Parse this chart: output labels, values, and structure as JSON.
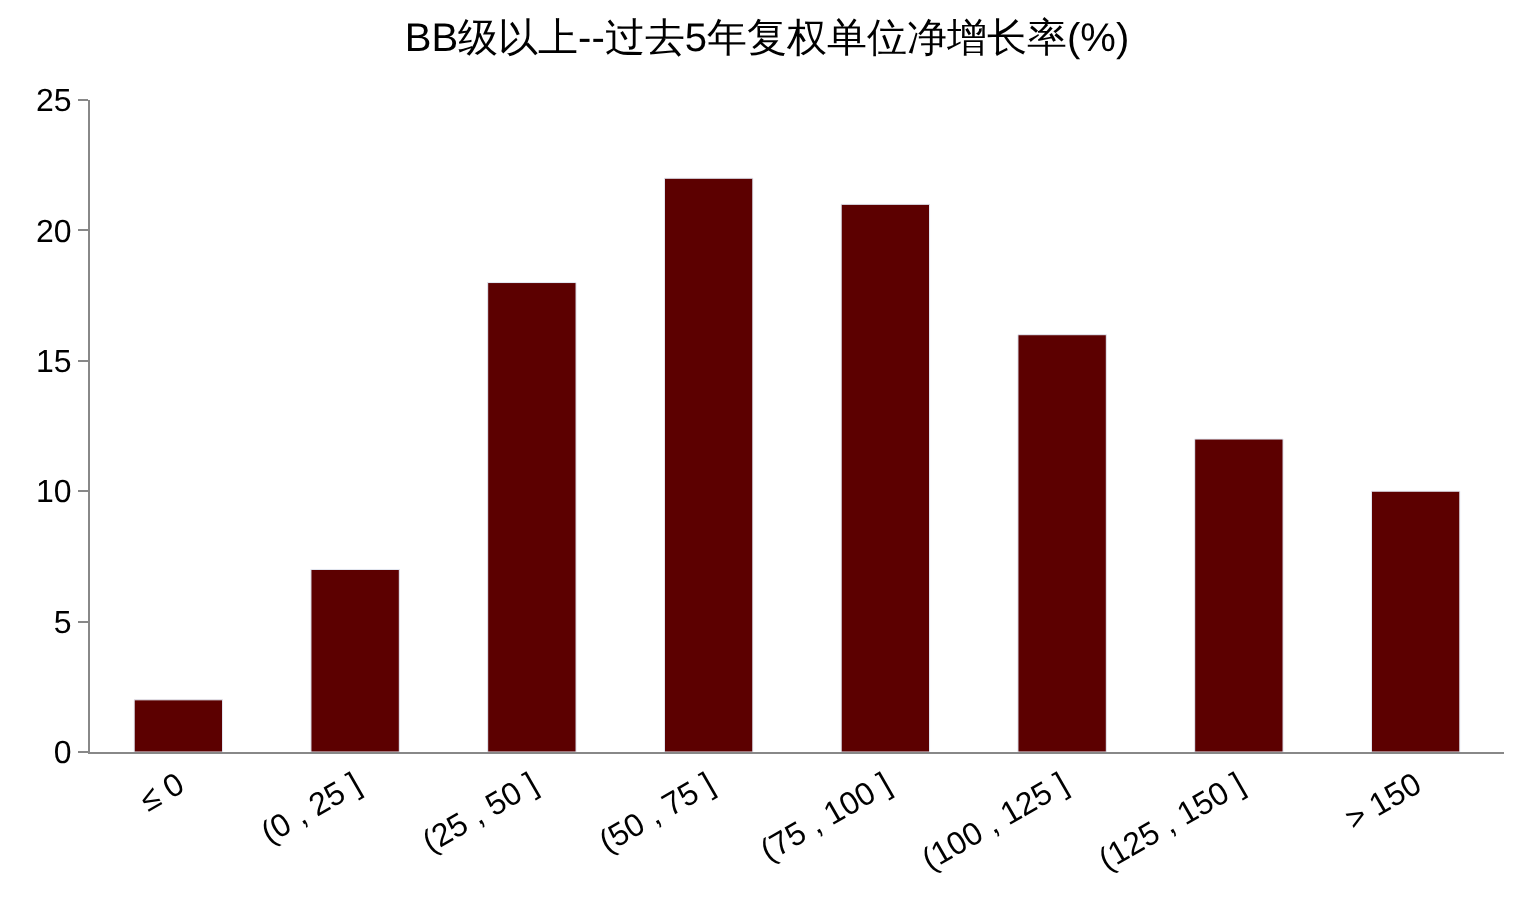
{
  "chart_data": {
    "type": "bar",
    "title": "BB级以上--过去5年复权单位净增长率(%)",
    "categories": [
      "≤ 0",
      "(0 , 25 ]",
      "(25 , 50 ]",
      "(50 , 75 ]",
      "(75 , 100 ]",
      "(100 , 125 ]",
      "(125 , 150 ]",
      "> 150"
    ],
    "values": [
      2,
      7,
      18,
      22,
      21,
      16,
      12,
      10
    ],
    "color": "#5c0000",
    "ylim": [
      0,
      25
    ],
    "yticks": [
      0,
      5,
      10,
      15,
      20,
      25
    ]
  }
}
